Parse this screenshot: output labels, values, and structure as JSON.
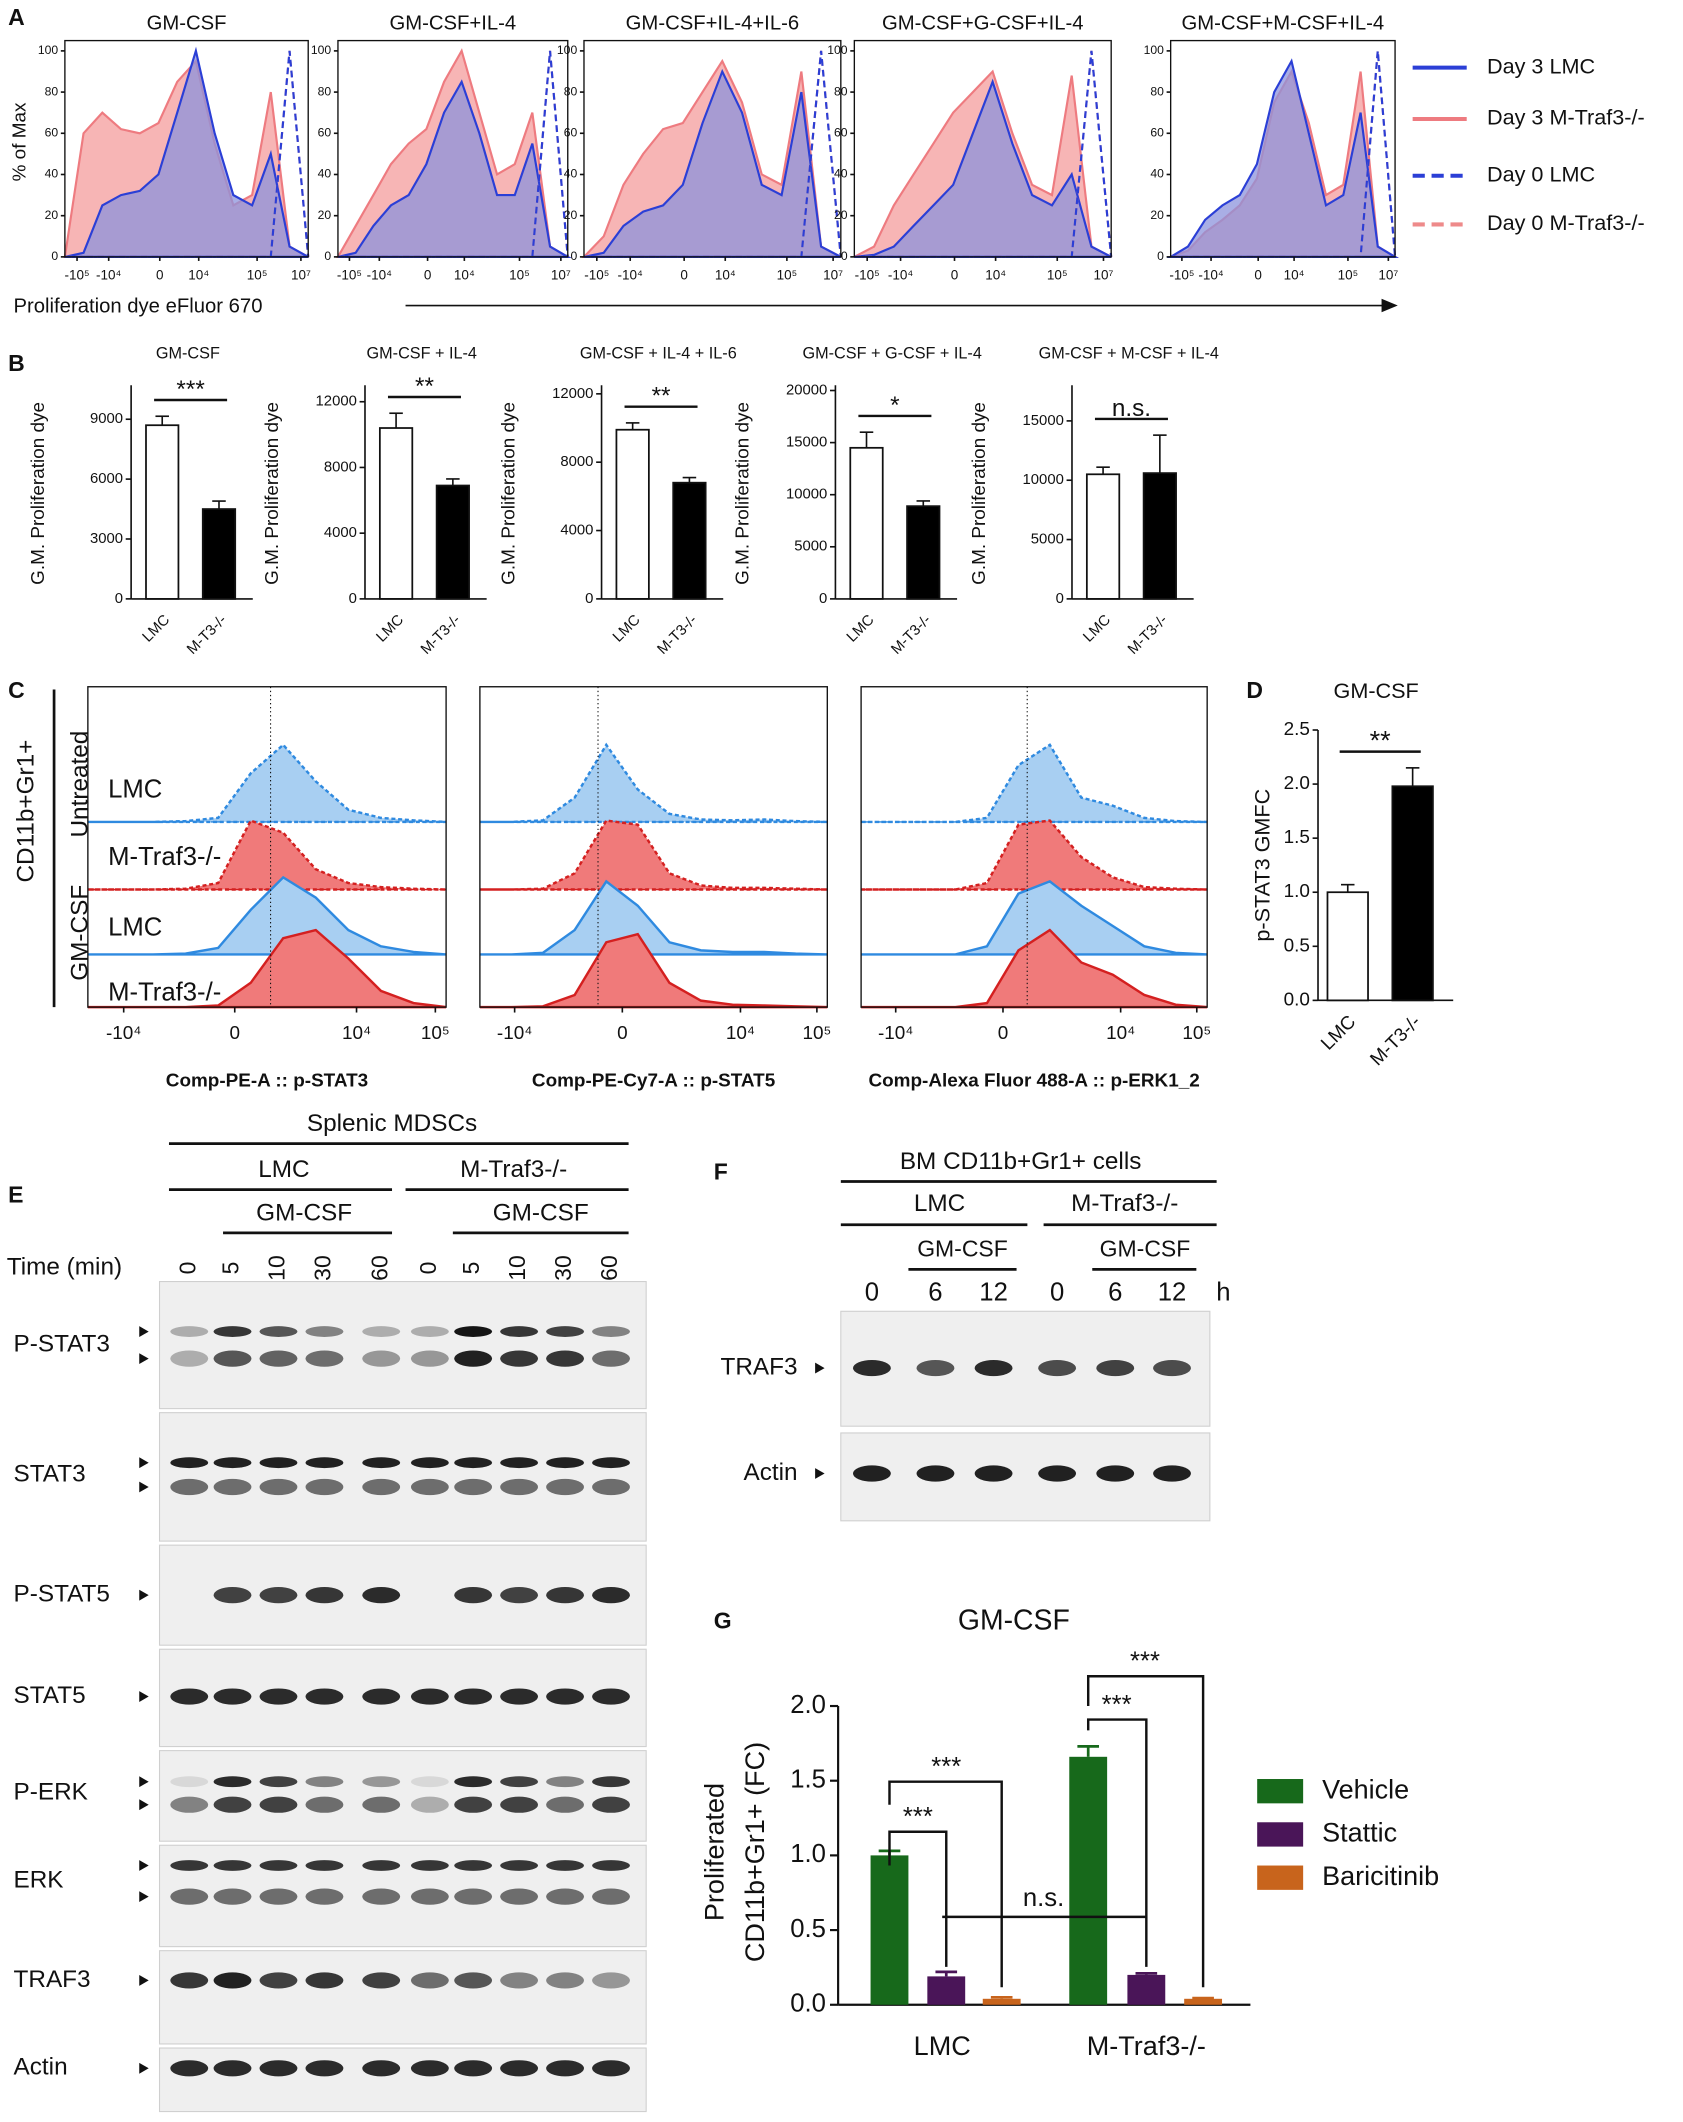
{
  "panel_labels": [
    "A",
    "B",
    "C",
    "D",
    "E",
    "F",
    "G"
  ],
  "panel_a": {
    "y_label": "% of Max",
    "x_label": "Proliferation dye eFluor 670",
    "ylim": [
      0,
      105
    ],
    "yticks": [
      0,
      20,
      40,
      60,
      80,
      100
    ],
    "xticks": [
      {
        "value": -100000,
        "label": "-10⁵"
      },
      {
        "value": -10000,
        "label": "-10⁴"
      },
      0,
      {
        "value": 10000,
        "label": "10⁴"
      },
      {
        "value": 100000,
        "label": "10⁵"
      },
      {
        "value": 10000000,
        "label": "10⁷"
      }
    ],
    "series": [
      {
        "name": "Day 3 LMC",
        "color": "#2b3fd6",
        "fill": "#8c93dc",
        "dashed": false
      },
      {
        "name": "Day 3 M-Traf3-/-",
        "color": "#ee7b80",
        "fill": "#f6a8a8",
        "dashed": false
      },
      {
        "name": "Day 0 LMC",
        "color": "#2b3fd6",
        "dashed": true
      },
      {
        "name": "Day 0 M-Traf3-/-",
        "color": "#ee8a8a",
        "dashed": true
      }
    ],
    "charts": [
      {
        "title": "GM-CSF",
        "values": [
          [
            0,
            2,
            25,
            30,
            32,
            40,
            70,
            100,
            60,
            30,
            25,
            50,
            5,
            0
          ],
          [
            0,
            60,
            70,
            62,
            60,
            65,
            85,
            95,
            55,
            25,
            30,
            80,
            5,
            0
          ],
          [
            0,
            0,
            0,
            0,
            0,
            0,
            0,
            0,
            0,
            0,
            0,
            0,
            100,
            0
          ],
          [
            0,
            0,
            0,
            0,
            0,
            0,
            0,
            0,
            0,
            0,
            0,
            0,
            100,
            0
          ]
        ]
      },
      {
        "title": "GM-CSF+IL-4",
        "values": [
          [
            0,
            2,
            15,
            25,
            30,
            45,
            70,
            85,
            60,
            30,
            30,
            55,
            5,
            0
          ],
          [
            0,
            15,
            30,
            45,
            55,
            62,
            85,
            100,
            70,
            40,
            45,
            70,
            5,
            0
          ],
          [
            0,
            0,
            0,
            0,
            0,
            0,
            0,
            0,
            0,
            0,
            0,
            0,
            100,
            0
          ],
          [
            0,
            0,
            0,
            0,
            0,
            0,
            0,
            0,
            0,
            0,
            0,
            0,
            100,
            0
          ]
        ]
      },
      {
        "title": "GM-CSF+IL-4+IL-6",
        "values": [
          [
            0,
            2,
            15,
            22,
            25,
            35,
            65,
            90,
            70,
            35,
            30,
            80,
            5,
            0
          ],
          [
            0,
            10,
            35,
            50,
            62,
            65,
            80,
            95,
            75,
            40,
            35,
            90,
            5,
            0
          ],
          [
            0,
            0,
            0,
            0,
            0,
            0,
            0,
            0,
            0,
            0,
            0,
            0,
            100,
            0
          ],
          [
            0,
            0,
            0,
            0,
            0,
            0,
            0,
            0,
            0,
            0,
            0,
            0,
            100,
            0
          ]
        ]
      },
      {
        "title": "GM-CSF+G-CSF+IL-4",
        "values": [
          [
            0,
            1,
            5,
            15,
            25,
            35,
            60,
            85,
            55,
            30,
            25,
            40,
            5,
            0
          ],
          [
            0,
            5,
            25,
            40,
            55,
            70,
            80,
            90,
            60,
            35,
            30,
            88,
            5,
            0
          ],
          [
            0,
            0,
            0,
            0,
            0,
            0,
            0,
            0,
            0,
            0,
            0,
            0,
            100,
            0
          ],
          [
            0,
            0,
            0,
            0,
            0,
            0,
            0,
            0,
            0,
            0,
            0,
            0,
            100,
            0
          ]
        ]
      },
      {
        "title": "GM-CSF+M-CSF+IL-4",
        "values": [
          [
            0,
            5,
            18,
            25,
            30,
            45,
            80,
            95,
            60,
            25,
            30,
            70,
            5,
            0
          ],
          [
            0,
            3,
            12,
            18,
            25,
            38,
            75,
            90,
            65,
            30,
            35,
            90,
            5,
            0
          ],
          [
            0,
            0,
            0,
            0,
            0,
            0,
            0,
            0,
            0,
            0,
            0,
            0,
            100,
            0
          ],
          [
            0,
            0,
            0,
            0,
            0,
            0,
            0,
            0,
            0,
            0,
            0,
            0,
            100,
            0
          ]
        ]
      }
    ]
  },
  "panel_b": {
    "y_label": "G.M. Proliferation dye",
    "categories": [
      "LMC",
      "M-T3-/-"
    ],
    "colors": [
      "#ffffff",
      "#000000"
    ],
    "charts": [
      {
        "title": "GM-CSF",
        "ylim": [
          0,
          10700
        ],
        "yticks": [
          0,
          3000,
          6000,
          9000
        ],
        "values": [
          8700,
          4500
        ],
        "errors": [
          450,
          400
        ],
        "significance": "***"
      },
      {
        "title": "GM-CSF + IL-4",
        "ylim": [
          0,
          13000
        ],
        "yticks": [
          0,
          4000,
          8000,
          12000
        ],
        "values": [
          10400,
          6900
        ],
        "errors": [
          900,
          400
        ],
        "significance": "**"
      },
      {
        "title": "GM-CSF + IL-4 + IL-6",
        "ylim": [
          0,
          12500
        ],
        "yticks": [
          0,
          4000,
          8000,
          12000
        ],
        "values": [
          9900,
          6800
        ],
        "errors": [
          400,
          300
        ],
        "significance": "**"
      },
      {
        "title": "GM-CSF + G-CSF + IL-4",
        "ylim": [
          0,
          20500
        ],
        "yticks": [
          0,
          5000,
          10000,
          15000,
          20000
        ],
        "values": [
          14500,
          8900
        ],
        "errors": [
          1500,
          500
        ],
        "significance": "*"
      },
      {
        "title": "GM-CSF + M-CSF + IL-4",
        "ylim": [
          0,
          18000
        ],
        "yticks": [
          0,
          5000,
          10000,
          15000
        ],
        "values": [
          10500,
          10600
        ],
        "errors": [
          600,
          3200
        ],
        "significance": "n.s."
      }
    ]
  },
  "panel_c": {
    "side_label": "CD11b+Gr1+",
    "groups": [
      "Untreated",
      "GM-CSF"
    ],
    "rows": [
      "LMC",
      "M-Traf3-/-",
      "LMC",
      "M-Traf3-/-"
    ],
    "fill_colors": [
      "#a8cff2",
      "#f07a7a",
      "#a8cff2",
      "#f07a7a"
    ],
    "line_colors": [
      "#2f8ae0",
      "#d42020",
      "#2f8ae0",
      "#d42020"
    ],
    "dashed": [
      true,
      true,
      false,
      false
    ],
    "xticks": [
      {
        "value": -10000,
        "label": "-10⁴"
      },
      0,
      {
        "value": 10000,
        "label": "10⁴"
      },
      {
        "value": 100000,
        "label": "10⁵"
      }
    ],
    "charts": [
      {
        "x_label": "Comp-PE-A :: p-STAT3",
        "values": [
          [
            0,
            0,
            0,
            1,
            5,
            60,
            95,
            50,
            15,
            5,
            2,
            0
          ],
          [
            0,
            0,
            0,
            1,
            8,
            85,
            70,
            25,
            8,
            3,
            1,
            0
          ],
          [
            0,
            0,
            0,
            1,
            8,
            55,
            95,
            70,
            30,
            10,
            3,
            0
          ],
          [
            0,
            0,
            0,
            0,
            2,
            30,
            85,
            95,
            60,
            20,
            5,
            0
          ]
        ]
      },
      {
        "x_label": "Comp-PE-Cy7-A :: p-STAT5",
        "values": [
          [
            0,
            0,
            2,
            30,
            95,
            40,
            10,
            3,
            2,
            3,
            1,
            0
          ],
          [
            0,
            0,
            1,
            20,
            85,
            80,
            20,
            5,
            2,
            2,
            1,
            0
          ],
          [
            0,
            0,
            2,
            30,
            90,
            60,
            15,
            5,
            3,
            3,
            1,
            0
          ],
          [
            0,
            0,
            1,
            15,
            80,
            90,
            30,
            8,
            3,
            2,
            1,
            0
          ]
        ]
      },
      {
        "x_label": "Comp-Alexa Fluor 488-A :: p-ERK1_2",
        "values": [
          [
            0,
            0,
            0,
            0,
            5,
            70,
            95,
            30,
            20,
            5,
            1,
            0
          ],
          [
            0,
            0,
            0,
            0,
            8,
            80,
            85,
            40,
            15,
            3,
            1,
            0
          ],
          [
            0,
            0,
            0,
            0,
            10,
            75,
            90,
            60,
            35,
            10,
            2,
            0
          ],
          [
            0,
            0,
            0,
            0,
            5,
            70,
            95,
            55,
            40,
            15,
            3,
            0
          ]
        ]
      }
    ]
  },
  "panel_d": {
    "title": "GM-CSF",
    "y_label": "p-STAT3 GMFC",
    "categories": [
      "LMC",
      "M-T3-/-"
    ],
    "colors": [
      "#ffffff",
      "#000000"
    ],
    "ylim": [
      0,
      2.5
    ],
    "yticks": [
      {
        "value": 0,
        "label": "0.0"
      },
      0.5,
      {
        "value": 1,
        "label": "1.0"
      },
      1.5,
      {
        "value": 2,
        "label": "2.0"
      },
      2.5
    ],
    "values": [
      1.0,
      1.98
    ],
    "errors": [
      0.07,
      0.17
    ],
    "significance": "**"
  },
  "panel_e": {
    "title": "Splenic MDSCs",
    "groups": [
      "LMC",
      "M-Traf3-/-"
    ],
    "treatment": "GM-CSF",
    "time_label": "Time (min)",
    "times": [
      0,
      5,
      10,
      30,
      60,
      0,
      5,
      10,
      30,
      60
    ],
    "rows": [
      "P-STAT3",
      "STAT3",
      "P-STAT5",
      "STAT5",
      "P-ERK",
      "ERK",
      "TRAF3",
      "Actin"
    ]
  },
  "panel_f": {
    "title": "BM CD11b+Gr1+ cells",
    "groups": [
      "LMC",
      "M-Traf3-/-"
    ],
    "treatment": "GM-CSF",
    "times": [
      0,
      6,
      12,
      0,
      6,
      12
    ],
    "unit": "h",
    "rows": [
      "TRAF3",
      "Actin"
    ]
  },
  "panel_g": {
    "title": "GM-CSF",
    "y_label": [
      "Proliferated",
      "CD11b+Gr1+ (FC)"
    ],
    "categories": [
      "LMC",
      "M-Traf3-/-"
    ],
    "ylim": [
      0,
      2.0
    ],
    "yticks": [
      {
        "value": 0,
        "label": "0.0"
      },
      0.5,
      {
        "value": 1,
        "label": "1.0"
      },
      1.5,
      {
        "value": 2,
        "label": "2.0"
      }
    ],
    "series": [
      {
        "name": "Vehicle",
        "color": "#17691b",
        "values": [
          1.0,
          1.66
        ],
        "errors": [
          0.03,
          0.07
        ]
      },
      {
        "name": "Stattic",
        "color": "#4a1558",
        "values": [
          0.19,
          0.2
        ],
        "errors": [
          0.03,
          0.01
        ]
      },
      {
        "name": "Baricitinib",
        "color": "#c8641c",
        "values": [
          0.04,
          0.04
        ],
        "errors": [
          0.01,
          0.005
        ]
      }
    ],
    "annotations": [
      "***",
      "***",
      "***",
      "***",
      "n.s."
    ]
  }
}
